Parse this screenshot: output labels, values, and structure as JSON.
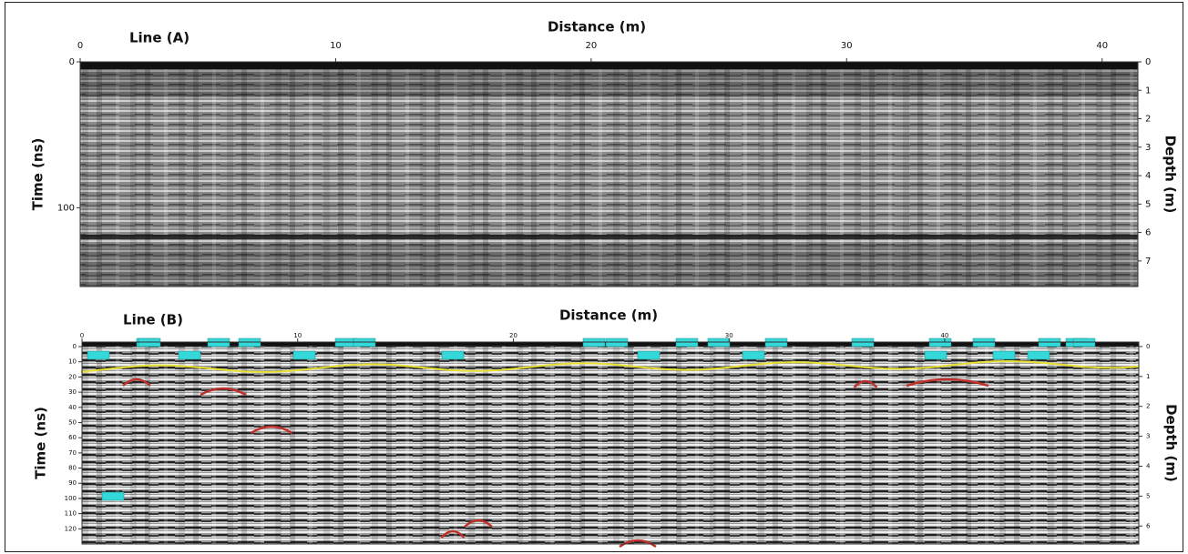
{
  "panels": [
    {
      "label": "Line (A)",
      "x_title": "Distance (m)",
      "y_title": "Time (ns)",
      "y2_title": "Depth (m)",
      "xlim": [
        0,
        41.4
      ],
      "xticks": [
        0,
        10,
        20,
        30,
        40
      ],
      "ylim": [
        0,
        154
      ],
      "yticks": [
        0,
        100
      ],
      "y2lim": [
        0,
        7.9
      ],
      "y2ticks": [
        0,
        1,
        2,
        3,
        4,
        5,
        6,
        7
      ]
    },
    {
      "label": "Line (B)",
      "x_title": "Distance (m)",
      "y_title": "Time (ns)",
      "y2_title": "Depth (m)",
      "xlim": [
        0,
        49
      ],
      "xticks": [
        0,
        10,
        20,
        30,
        40
      ],
      "ylim": [
        -3,
        130
      ],
      "yticks": [
        0,
        10,
        20,
        30,
        40,
        50,
        60,
        70,
        80,
        90,
        100,
        110,
        120
      ],
      "y2lim": [
        -0.15,
        6.6
      ],
      "y2ticks": [
        0,
        1,
        2,
        3,
        4,
        5,
        6
      ]
    }
  ]
}
